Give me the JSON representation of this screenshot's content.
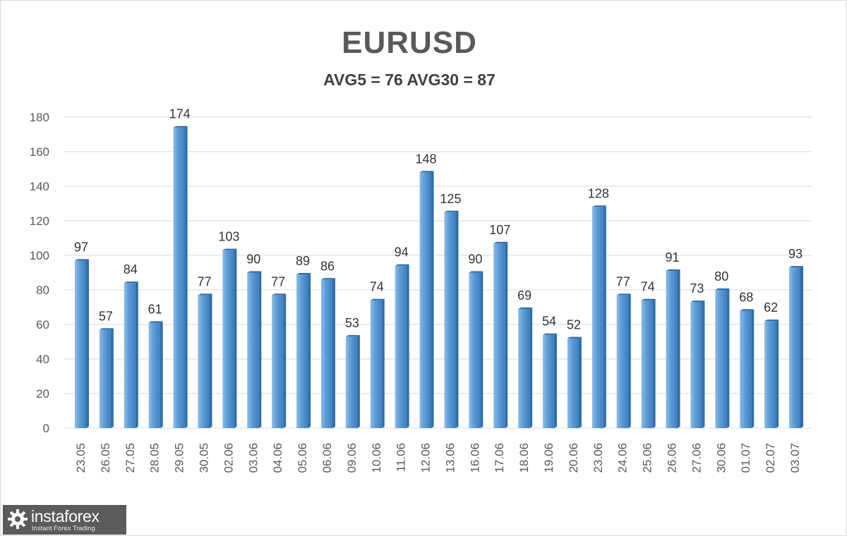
{
  "chart_data": {
    "type": "bar",
    "title": "EURUSD",
    "subtitle": "AVG5 = 76 AVG30 = 87",
    "categories": [
      "23.05",
      "26.05",
      "27.05",
      "28.05",
      "29.05",
      "30.05",
      "02.06",
      "03.06",
      "04.06",
      "05.06",
      "06.06",
      "09.06",
      "10.06",
      "11.06",
      "12.06",
      "13.06",
      "16.06",
      "17.06",
      "18.06",
      "19.06",
      "20.06",
      "23.06",
      "24.06",
      "25.06",
      "26.06",
      "27.06",
      "30.06",
      "01.07",
      "02.07",
      "03.07"
    ],
    "values": [
      97,
      57,
      84,
      61,
      174,
      77,
      103,
      90,
      77,
      89,
      86,
      53,
      74,
      94,
      148,
      125,
      90,
      107,
      69,
      54,
      52,
      128,
      77,
      74,
      91,
      73,
      80,
      68,
      62,
      93
    ],
    "ylim": [
      0,
      180
    ],
    "yticks": [
      0,
      20,
      40,
      60,
      80,
      100,
      120,
      140,
      160,
      180
    ],
    "grid": true,
    "bar_color": "#5b9bd5",
    "bar_color_dark": "#2e6fad",
    "grid_color": "#d9d9d9"
  },
  "logo": {
    "name": "instaforex",
    "tagline": "Instant Forex Trading"
  }
}
